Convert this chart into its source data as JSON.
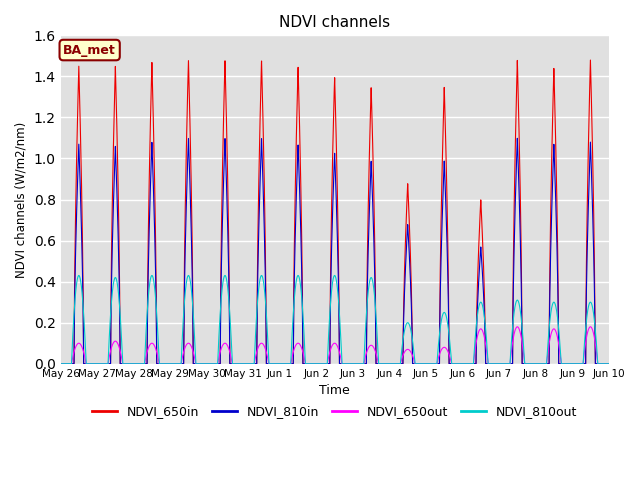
{
  "title": "NDVI channels",
  "xlabel": "Time",
  "ylabel": "NDVI channels (W/m2/nm)",
  "ylim": [
    0.0,
    1.6
  ],
  "legend_label": "BA_met",
  "series_colors": {
    "NDVI_650in": "#ee0000",
    "NDVI_810in": "#0000cc",
    "NDVI_650out": "#ff00ff",
    "NDVI_810out": "#00cccc"
  },
  "xtick_labels": [
    "May 26",
    "May 27",
    "May 28",
    "May 29",
    "May 30",
    "May 31",
    "Jun 1",
    "Jun 2",
    "Jun 3",
    "Jun 4",
    "Jun 5",
    "Jun 6",
    "Jun 7",
    "Jun 8",
    "Jun 9",
    "Jun 10"
  ],
  "plot_bg": "#e0e0e0",
  "fig_bg": "#ffffff",
  "peak_heights_650in": [
    1.45,
    1.45,
    1.47,
    1.48,
    1.48,
    1.48,
    1.45,
    1.4,
    1.35,
    0.88,
    1.35,
    0.8,
    1.48,
    1.44,
    1.48
  ],
  "peak_heights_810in": [
    1.07,
    1.06,
    1.08,
    1.1,
    1.1,
    1.1,
    1.07,
    1.03,
    0.99,
    0.68,
    0.99,
    0.57,
    1.1,
    1.07,
    1.08
  ],
  "peak_heights_650out": [
    0.1,
    0.11,
    0.1,
    0.1,
    0.1,
    0.1,
    0.1,
    0.1,
    0.09,
    0.07,
    0.08,
    0.17,
    0.18,
    0.17,
    0.18
  ],
  "peak_heights_810out": [
    0.43,
    0.42,
    0.43,
    0.43,
    0.43,
    0.43,
    0.43,
    0.43,
    0.42,
    0.2,
    0.25,
    0.3,
    0.31,
    0.3,
    0.3
  ]
}
